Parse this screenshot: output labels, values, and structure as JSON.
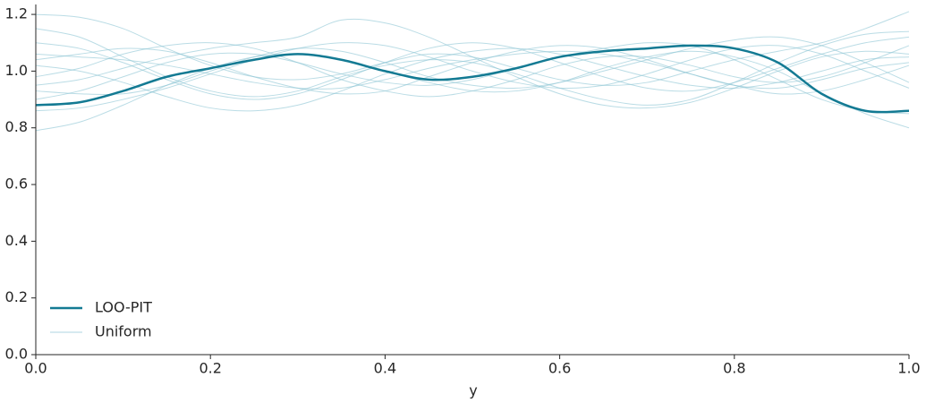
{
  "chart_data": {
    "type": "line",
    "xlabel": "y",
    "x": [
      0,
      0.05,
      0.1,
      0.15,
      0.2,
      0.25,
      0.3,
      0.35,
      0.4,
      0.45,
      0.5,
      0.55,
      0.6,
      0.65,
      0.7,
      0.75,
      0.8,
      0.85,
      0.9,
      0.95,
      1.0
    ],
    "xlim": [
      0,
      1
    ],
    "xticks": [
      {
        "value": 0,
        "label": "0.0"
      },
      0.2,
      0.4,
      0.6,
      0.8,
      {
        "value": 1,
        "label": "1.0"
      }
    ],
    "ylim": [
      0,
      1.235
    ],
    "yticks": [
      {
        "value": 0,
        "label": "0.0"
      },
      0.2,
      0.4,
      0.6,
      0.8,
      {
        "value": 1,
        "label": "1.0"
      },
      1.2
    ],
    "legend": "lower left",
    "series": [
      {
        "name": "LOO-PIT",
        "color": "#137a93",
        "values": [
          0.88,
          0.89,
          0.93,
          0.98,
          1.01,
          1.04,
          1.06,
          1.04,
          1.0,
          0.97,
          0.98,
          1.01,
          1.05,
          1.07,
          1.08,
          1.09,
          1.08,
          1.03,
          0.92,
          0.86,
          0.86
        ]
      },
      {
        "name": "Uniform",
        "color": "#8cc4d4",
        "values": [
          [
            1.2,
            1.19,
            1.15,
            1.08,
            1.02,
            0.98,
            0.97,
            0.99,
            1.03,
            1.06,
            1.05,
            1.01,
            0.97,
            0.95,
            0.96,
            1.0,
            1.04,
            1.07,
            1.1,
            1.15,
            1.21
          ],
          [
            0.79,
            0.82,
            0.88,
            0.95,
            1.01,
            1.05,
            1.06,
            1.04,
            1.0,
            0.96,
            0.93,
            0.93,
            0.96,
            1.01,
            1.05,
            1.07,
            1.05,
            1.0,
            0.92,
            0.85,
            0.8
          ],
          [
            1.1,
            1.08,
            1.03,
            0.97,
            0.92,
            0.9,
            0.92,
            0.97,
            1.03,
            1.08,
            1.1,
            1.08,
            1.03,
            0.98,
            0.94,
            0.93,
            0.96,
            1.01,
            1.06,
            1.1,
            1.12
          ],
          [
            0.95,
            0.97,
            1.01,
            1.05,
            1.08,
            1.1,
            1.12,
            1.18,
            1.17,
            1.12,
            1.05,
            0.98,
            0.92,
            0.88,
            0.87,
            0.89,
            0.94,
            1.0,
            1.05,
            1.07,
            1.06
          ],
          [
            1.02,
            1.0,
            0.96,
            0.91,
            0.87,
            0.86,
            0.88,
            0.93,
            0.99,
            1.04,
            1.07,
            1.08,
            1.06,
            1.02,
            0.98,
            0.95,
            0.94,
            0.96,
            1.0,
            1.04,
            1.05
          ],
          [
            0.9,
            0.93,
            0.98,
            1.03,
            1.06,
            1.06,
            1.03,
            0.99,
            0.96,
            0.95,
            0.97,
            1.01,
            1.05,
            1.08,
            1.1,
            1.09,
            1.04,
            0.97,
            0.9,
            0.86,
            0.85
          ],
          [
            1.06,
            1.05,
            1.04,
            1.02,
            0.99,
            0.96,
            0.94,
            0.94,
            0.97,
            1.01,
            1.04,
            1.06,
            1.07,
            1.06,
            1.03,
            0.99,
            0.95,
            0.92,
            0.93,
            0.97,
            1.02
          ],
          [
            0.98,
            1.01,
            1.06,
            1.09,
            1.1,
            1.08,
            1.03,
            0.97,
            0.93,
            0.91,
            0.93,
            0.97,
            1.02,
            1.05,
            1.05,
            1.02,
            0.98,
            0.96,
            0.98,
            1.03,
            1.09
          ],
          [
            1.15,
            1.12,
            1.05,
            0.98,
            0.93,
            0.91,
            0.93,
            0.98,
            1.02,
            1.04,
            1.03,
            0.99,
            0.94,
            0.9,
            0.88,
            0.9,
            0.96,
            1.03,
            1.09,
            1.13,
            1.14
          ],
          [
            0.86,
            0.87,
            0.9,
            0.94,
            0.99,
            1.04,
            1.08,
            1.1,
            1.09,
            1.05,
            1.0,
            0.96,
            0.94,
            0.95,
            0.99,
            1.04,
            1.08,
            1.09,
            1.06,
            1.0,
            0.94
          ],
          [
            1.04,
            1.06,
            1.08,
            1.07,
            1.03,
            0.98,
            0.94,
            0.92,
            0.93,
            0.98,
            1.03,
            1.07,
            1.09,
            1.08,
            1.04,
            0.99,
            0.95,
            0.94,
            0.97,
            1.01,
            1.03
          ],
          [
            0.93,
            0.92,
            0.92,
            0.95,
            1.0,
            1.05,
            1.08,
            1.07,
            1.03,
            0.98,
            0.95,
            0.94,
            0.96,
            1.0,
            1.04,
            1.08,
            1.11,
            1.12,
            1.09,
            1.03,
            0.96
          ]
        ]
      }
    ]
  }
}
